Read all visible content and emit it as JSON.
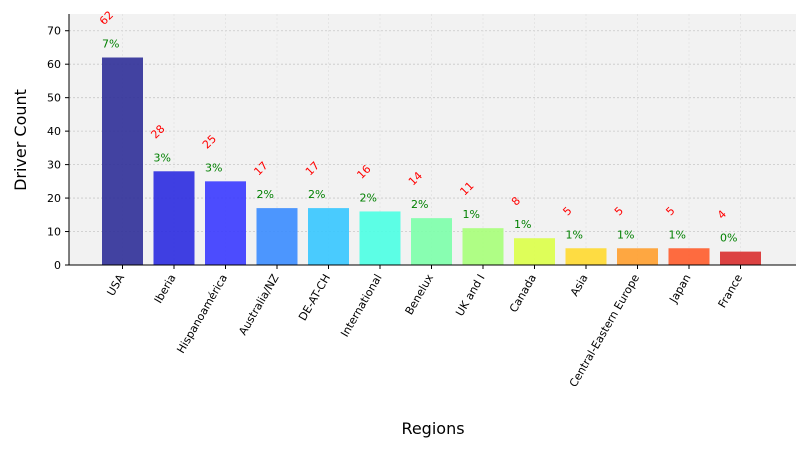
{
  "chart_data": {
    "type": "bar",
    "title": "",
    "xlabel": "Regions",
    "ylabel": "Driver Count",
    "ylim": [
      0,
      75
    ],
    "yticks": [
      0,
      10,
      20,
      30,
      40,
      50,
      60,
      70
    ],
    "grid": true,
    "legend": "none",
    "categories": [
      "USA",
      "Iberia",
      "Hispanoamérica",
      "Australia/NZ",
      "DE-AT-CH",
      "International",
      "Benelux",
      "UK and I",
      "Canada",
      "Asia",
      "Central-Eastern Europe",
      "Japan",
      "France"
    ],
    "values": [
      62,
      28,
      25,
      17,
      17,
      16,
      14,
      11,
      8,
      5,
      5,
      5,
      4
    ],
    "percent_labels": [
      "7%",
      "3%",
      "3%",
      "2%",
      "2%",
      "2%",
      "2%",
      "1%",
      "1%",
      "1%",
      "1%",
      "1%",
      "0%"
    ],
    "bar_colors": [
      "#2f2f98",
      "#2b2be0",
      "#3a3aff",
      "#3a8cff",
      "#36c6ff",
      "#4bffe3",
      "#7cffaa",
      "#a7ff79",
      "#dcff48",
      "#ffd92f",
      "#ff9e2d",
      "#ff5c2b",
      "#d92e2e"
    ],
    "count_label_color": "#ff0000",
    "percent_label_color": "#008000",
    "plot_background": "#f2f2f2"
  }
}
